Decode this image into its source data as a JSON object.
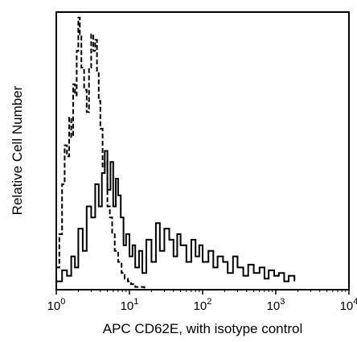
{
  "chart_data": {
    "type": "line",
    "title": "",
    "xlabel": "APC CD62E, with isotype control",
    "ylabel": "Relative Cell Number",
    "x_scale": "log",
    "xlim": [
      1,
      10000
    ],
    "ylim": [
      0,
      100
    ],
    "x_ticks": [
      {
        "base": "10",
        "exp": "0"
      },
      {
        "base": "10",
        "exp": "1"
      },
      {
        "base": "10",
        "exp": "2"
      },
      {
        "base": "10",
        "exp": "3"
      },
      {
        "base": "10",
        "exp": "4"
      }
    ],
    "grid": false,
    "legend": "none",
    "series": [
      {
        "style": "dashed",
        "color": "#000000",
        "x": [
          1.0,
          1.1,
          1.2,
          1.3,
          1.4,
          1.5,
          1.6,
          1.7,
          1.8,
          1.9,
          2.0,
          2.1,
          2.2,
          2.4,
          2.6,
          2.8,
          3.0,
          3.2,
          3.4,
          3.6,
          3.8,
          4.0,
          4.3,
          4.6,
          5.0,
          5.4,
          5.8,
          6.3,
          7.0,
          7.8,
          8.6,
          9.5,
          10.5,
          12,
          14,
          16
        ],
        "values": [
          8,
          20,
          38,
          52,
          48,
          62,
          55,
          74,
          70,
          86,
          98,
          92,
          80,
          72,
          64,
          80,
          92,
          86,
          90,
          78,
          68,
          58,
          44,
          46,
          30,
          26,
          20,
          14,
          10,
          6,
          4,
          3,
          2,
          1,
          1,
          0
        ]
      },
      {
        "style": "solid",
        "color": "#000000",
        "x": [
          1.0,
          1.2,
          1.4,
          1.6,
          1.8,
          2.0,
          2.3,
          2.6,
          3.0,
          3.4,
          3.8,
          4.2,
          4.6,
          5.0,
          5.5,
          6.0,
          6.5,
          7.0,
          7.6,
          8.3,
          9.0,
          10,
          11,
          12,
          13.5,
          15,
          17,
          20,
          23,
          26,
          30,
          35,
          40,
          45,
          50,
          60,
          70,
          80,
          90,
          100,
          120,
          140,
          160,
          190,
          220,
          260,
          300,
          360,
          420,
          500,
          600,
          700,
          800,
          950,
          1100,
          1300,
          1500,
          1800
        ],
        "values": [
          3,
          7,
          5,
          12,
          8,
          22,
          14,
          30,
          26,
          38,
          30,
          42,
          50,
          36,
          46,
          30,
          40,
          34,
          26,
          16,
          20,
          12,
          16,
          8,
          14,
          6,
          18,
          10,
          24,
          14,
          22,
          18,
          12,
          20,
          16,
          10,
          18,
          12,
          16,
          10,
          14,
          8,
          12,
          10,
          6,
          12,
          8,
          5,
          9,
          6,
          8,
          4,
          7,
          5,
          6,
          3,
          5,
          3
        ]
      }
    ]
  }
}
